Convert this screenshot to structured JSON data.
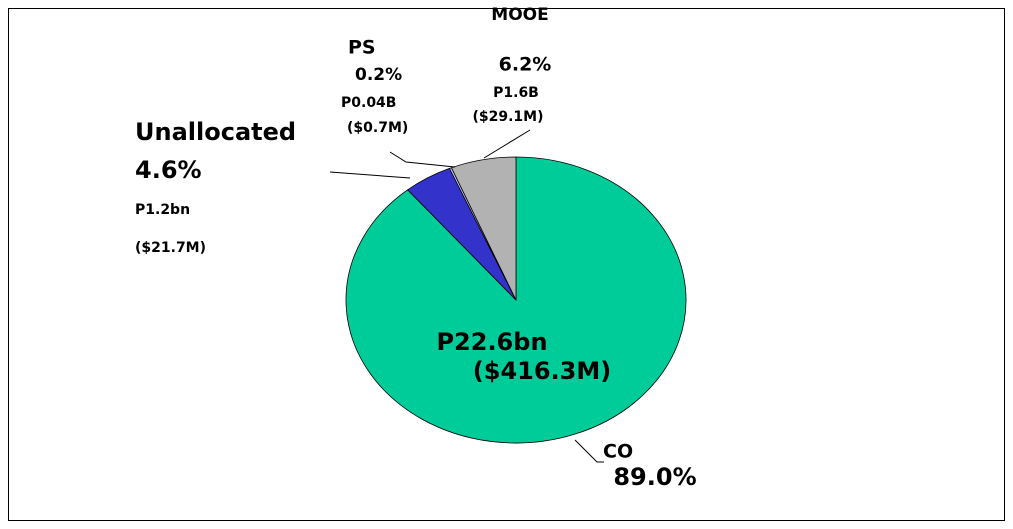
{
  "chart_data": {
    "type": "pie",
    "categories": [
      "CO",
      "Unallocated",
      "PS",
      "MOOE"
    ],
    "values": [
      89.0,
      4.6,
      0.2,
      6.2
    ],
    "value_labels": [
      "89.0%",
      "4.6%",
      "0.2%",
      "6.2%"
    ],
    "amounts": [
      "P22.6bn",
      "P1.2bn",
      "P0.04B",
      "P1.6B"
    ],
    "usd": [
      "($416.3M)",
      "($21.7M)",
      "($0.7M)",
      "($29.1M)"
    ],
    "colors": [
      "#00cc99",
      "#3333cc",
      "#ccccff",
      "#b2b2b2"
    ]
  }
}
